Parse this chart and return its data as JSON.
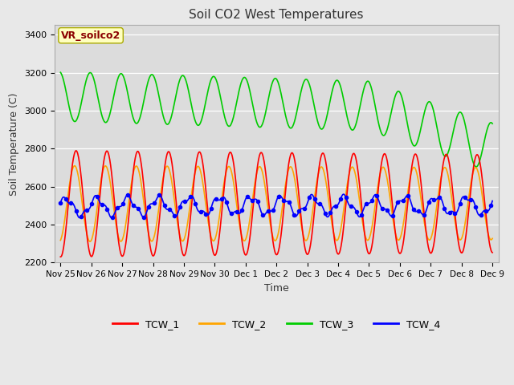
{
  "title": "Soil CO2 West Temperatures",
  "xlabel": "Time",
  "ylabel": "Soil Temperature (C)",
  "ylim": [
    2200,
    3450
  ],
  "background_color": "#e8e8e8",
  "fig_color": "#e8e8e8",
  "vr_label": "VR_soilco2",
  "vr_label_color": "#8B0000",
  "vr_box_facecolor": "#ffffc0",
  "vr_box_edgecolor": "#aaaa00",
  "colors": {
    "TCW_1": "#ff0000",
    "TCW_2": "#ffa500",
    "TCW_3": "#00cc00",
    "TCW_4": "#0000ff"
  },
  "yticks": [
    2200,
    2400,
    2600,
    2800,
    3000,
    3200,
    3400
  ],
  "xtick_labels": [
    "Nov 25",
    "Nov 26",
    "Nov 27",
    "Nov 28",
    "Nov 29",
    "Nov 30",
    "Dec 1",
    "Dec 2",
    "Dec 3",
    "Dec 4",
    "Dec 5",
    "Dec 6",
    "Dec 7",
    "Dec 8",
    "Dec 9"
  ],
  "xtick_positions": [
    0,
    1,
    2,
    3,
    4,
    5,
    6,
    7,
    8,
    9,
    10,
    11,
    12,
    13,
    14
  ],
  "n_points": 1000,
  "t_start": 0,
  "t_end": 14
}
